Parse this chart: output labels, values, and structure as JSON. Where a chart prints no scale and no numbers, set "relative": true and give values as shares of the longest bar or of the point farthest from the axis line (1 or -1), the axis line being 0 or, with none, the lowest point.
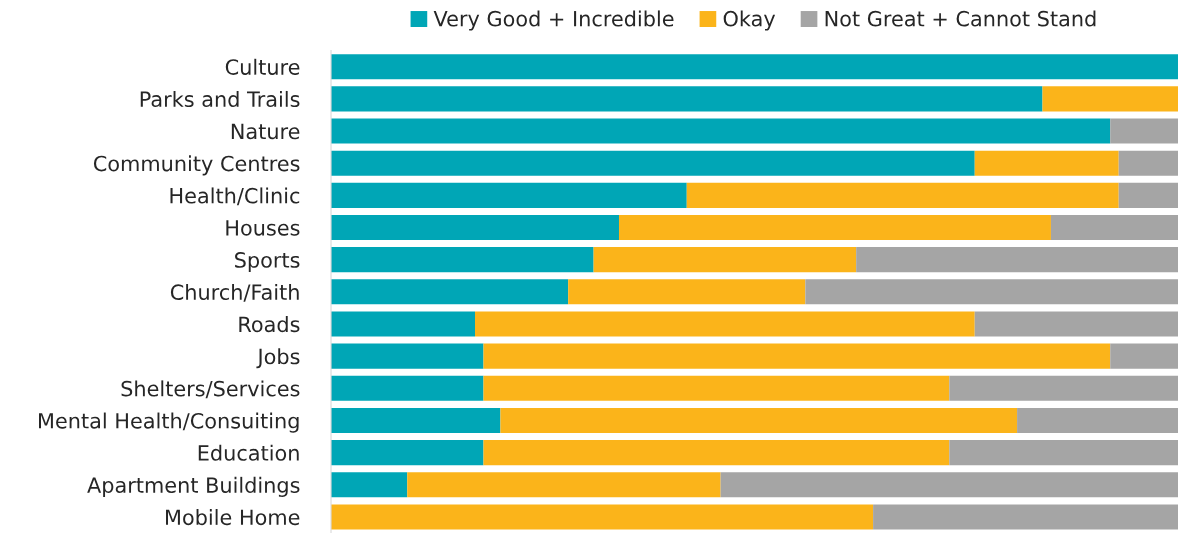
{
  "chart_data": {
    "type": "bar",
    "orientation": "horizontal",
    "stacked": true,
    "relative": true,
    "legend": "top",
    "grid": false,
    "categories": [
      "Culture",
      "Parks and Trails",
      "Nature",
      "Community Centres",
      "Health/Clinic",
      "Houses",
      "Sports",
      "Church/Faith",
      "Roads",
      "Jobs",
      "Shelters/Services",
      "Mental Health/Consuiting",
      "Education",
      "Apartment Buildings",
      "Mobile Home"
    ],
    "series": [
      {
        "name": "Very Good + Incredible",
        "color": "#00a6b6",
        "values": [
          1.0,
          0.84,
          0.92,
          0.76,
          0.42,
          0.34,
          0.31,
          0.28,
          0.17,
          0.18,
          0.18,
          0.2,
          0.18,
          0.09,
          0
        ]
      },
      {
        "name": "Okay",
        "color": "#fbb41a",
        "values": [
          0,
          0.16,
          0,
          0.17,
          0.51,
          0.51,
          0.31,
          0.28,
          0.59,
          0.74,
          0.55,
          0.61,
          0.55,
          0.37,
          0.64
        ]
      },
      {
        "name": "Not Great + Cannot Stand",
        "color": "#a5a5a5",
        "values": [
          0,
          0,
          0.08,
          0.07,
          0.07,
          0.15,
          0.38,
          0.44,
          0.24,
          0.08,
          0.27,
          0.19,
          0.27,
          0.54,
          0.36
        ]
      }
    ]
  }
}
